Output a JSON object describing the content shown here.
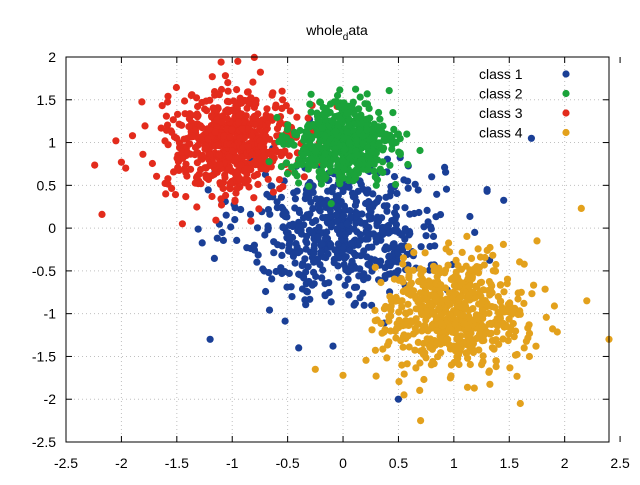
{
  "chart_data": {
    "type": "scatter",
    "title": "whole_data",
    "title_display": {
      "main": "whole",
      "sub": "d",
      "rest": "ata"
    },
    "xlabel": "",
    "ylabel": "",
    "xlim": [
      -2.5,
      2.4
    ],
    "ylim": [
      -2.5,
      2
    ],
    "xticks": [
      -2.5,
      -2,
      -1.5,
      -1,
      -0.5,
      0,
      0.5,
      1,
      1.5,
      2,
      2.5
    ],
    "xtick_labels": [
      "-2.5",
      "-2",
      "-1.5",
      "-1",
      "-0.5",
      "0",
      "0.5",
      "1",
      "1.5",
      "2",
      "2.5"
    ],
    "yticks": [
      -2.5,
      -2,
      -1.5,
      -1,
      -0.5,
      0,
      0.5,
      1,
      1.5,
      2
    ],
    "ytick_labels": [
      "-2.5",
      "-2",
      "-1.5",
      "-1",
      "-0.5",
      "0",
      "0.5",
      "1",
      "1.5",
      "2"
    ],
    "grid": true,
    "legend_position": "top-right",
    "series": [
      {
        "name": "class 1",
        "color": "#1a3f96",
        "cluster_center": [
          0,
          0
        ],
        "cluster_spread": [
          0.45,
          0.42
        ],
        "approx_points": 600,
        "sample_points": [
          [
            -1.2,
            -1.3
          ],
          [
            -0.4,
            -1.4
          ],
          [
            0.5,
            -2.0
          ],
          [
            1.3,
            0.45
          ],
          [
            1.7,
            1.05
          ],
          [
            -0.8,
            -0.2
          ],
          [
            0.8,
            0.6
          ],
          [
            0.1,
            -0.9
          ]
        ]
      },
      {
        "name": "class 2",
        "color": "#1aa33a",
        "cluster_center": [
          0,
          1
        ],
        "cluster_spread": [
          0.22,
          0.22
        ],
        "approx_points": 600,
        "sample_points": [
          [
            -0.3,
            1.45
          ],
          [
            0.5,
            1.1
          ],
          [
            0.3,
            0.5
          ],
          [
            -0.4,
            0.8
          ],
          [
            0.45,
            1.35
          ],
          [
            -0.05,
            1.55
          ]
        ]
      },
      {
        "name": "class 3",
        "color": "#e32b1c",
        "cluster_center": [
          -1,
          1
        ],
        "cluster_spread": [
          0.3,
          0.3
        ],
        "approx_points": 600,
        "sample_points": [
          [
            -2.05,
            1.02
          ],
          [
            -1.9,
            1.08
          ],
          [
            -2.0,
            0.77
          ],
          [
            -1.6,
            0.4
          ],
          [
            -1.45,
            0.05
          ],
          [
            -0.95,
            1.95
          ],
          [
            -0.55,
            1.6
          ],
          [
            -0.35,
            0.6
          ]
        ]
      },
      {
        "name": "class 4",
        "color": "#e3a11c",
        "cluster_center": [
          1,
          -1
        ],
        "cluster_spread": [
          0.32,
          0.32
        ],
        "approx_points": 600,
        "sample_points": [
          [
            2.4,
            -1.3
          ],
          [
            2.2,
            -0.85
          ],
          [
            2.15,
            0.23
          ],
          [
            1.75,
            -0.15
          ],
          [
            0.55,
            -1.95
          ],
          [
            0.7,
            -2.25
          ],
          [
            -0.25,
            -1.65
          ],
          [
            0.0,
            -1.72
          ],
          [
            1.6,
            -2.05
          ]
        ]
      }
    ]
  }
}
